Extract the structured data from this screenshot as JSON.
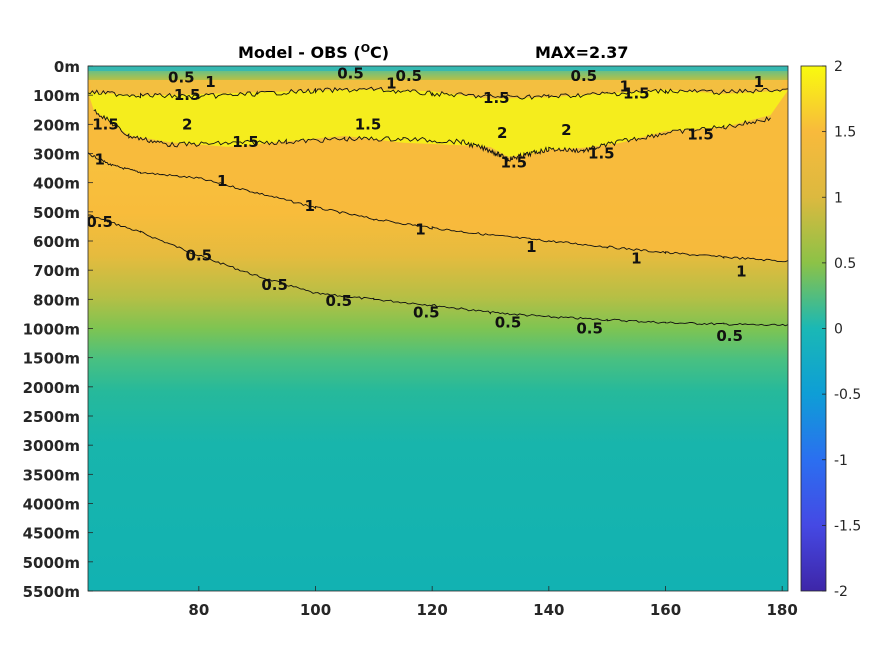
{
  "chart_data": {
    "type": "heatmap",
    "title": "Model - OBS (",
    "title_unit_sup": "O",
    "title_unit_tail": "C)",
    "max_label": "MAX=2.37",
    "xlim": [
      61,
      181
    ],
    "x_ticks": [
      80,
      100,
      120,
      140,
      160,
      180
    ],
    "y_ticks": [
      "0m",
      "100m",
      "200m",
      "300m",
      "400m",
      "500m",
      "600m",
      "700m",
      "800m",
      "1000m",
      "1500m",
      "2000m",
      "2500m",
      "3000m",
      "3500m",
      "4000m",
      "4500m",
      "5000m",
      "5500m"
    ],
    "colorbar": {
      "range": [
        -2,
        2
      ],
      "ticks": [
        2,
        1.5,
        1,
        0.5,
        0,
        -0.5,
        -1,
        -1.5,
        -2
      ],
      "tick_labels": [
        "2",
        "1.5",
        "1",
        "0.5",
        "0",
        "-0.5",
        "-1",
        "-1.5",
        "-2"
      ],
      "colormap": "parula"
    },
    "contours": [
      {
        "level": 0.5,
        "label": "0.5",
        "points": [
          [
            61,
            5.1
          ],
          [
            70,
            5.7
          ],
          [
            80,
            6.5
          ],
          [
            90,
            7.2
          ],
          [
            100,
            7.8
          ],
          [
            110,
            8.0
          ],
          [
            120,
            8.2
          ],
          [
            130,
            8.45
          ],
          [
            140,
            8.6
          ],
          [
            150,
            8.7
          ],
          [
            160,
            8.8
          ],
          [
            170,
            8.85
          ],
          [
            181,
            8.9
          ]
        ]
      },
      {
        "level": 1.0,
        "label": "1",
        "points": [
          [
            61,
            3.0
          ],
          [
            65,
            3.4
          ],
          [
            70,
            3.65
          ],
          [
            80,
            3.85
          ],
          [
            90,
            4.35
          ],
          [
            100,
            4.85
          ],
          [
            110,
            5.25
          ],
          [
            120,
            5.55
          ],
          [
            130,
            5.8
          ],
          [
            140,
            6.0
          ],
          [
            150,
            6.2
          ],
          [
            160,
            6.4
          ],
          [
            170,
            6.55
          ],
          [
            181,
            6.7
          ]
        ]
      },
      {
        "level": 1.5,
        "label": "1.5",
        "points": [
          [
            62,
            1.5
          ],
          [
            68,
            2.4
          ],
          [
            75,
            2.7
          ],
          [
            85,
            2.65
          ],
          [
            95,
            2.6
          ],
          [
            105,
            2.5
          ],
          [
            115,
            2.5
          ],
          [
            125,
            2.6
          ],
          [
            130,
            2.9
          ],
          [
            133,
            3.2
          ],
          [
            136,
            3.05
          ],
          [
            140,
            2.85
          ],
          [
            146,
            2.9
          ],
          [
            152,
            2.6
          ],
          [
            160,
            2.3
          ],
          [
            170,
            2.1
          ],
          [
            178,
            1.8
          ]
        ]
      },
      {
        "level": 1.5,
        "label": "1.5",
        "points": [
          [
            61,
            0.9
          ],
          [
            70,
            1.0
          ],
          [
            80,
            1.05
          ],
          [
            90,
            0.95
          ],
          [
            100,
            0.85
          ],
          [
            110,
            0.8
          ],
          [
            120,
            0.95
          ],
          [
            130,
            1.05
          ],
          [
            140,
            1.05
          ],
          [
            150,
            0.95
          ],
          [
            160,
            0.85
          ],
          [
            170,
            0.9
          ],
          [
            181,
            0.8
          ]
        ]
      }
    ],
    "contour_labels": [
      {
        "text": "0.5",
        "x": 63,
        "y": 5.35
      },
      {
        "text": "0.5",
        "x": 80,
        "y": 6.5
      },
      {
        "text": "0.5",
        "x": 93,
        "y": 7.5
      },
      {
        "text": "0.5",
        "x": 104,
        "y": 8.05
      },
      {
        "text": "0.5",
        "x": 119,
        "y": 8.45
      },
      {
        "text": "0.5",
        "x": 133,
        "y": 8.8
      },
      {
        "text": "0.5",
        "x": 147,
        "y": 9.0
      },
      {
        "text": "0.5",
        "x": 171,
        "y": 9.25
      },
      {
        "text": "1",
        "x": 63,
        "y": 3.2
      },
      {
        "text": "1",
        "x": 84,
        "y": 3.95
      },
      {
        "text": "1",
        "x": 99,
        "y": 4.8
      },
      {
        "text": "1",
        "x": 118,
        "y": 5.6
      },
      {
        "text": "1",
        "x": 137,
        "y": 6.2
      },
      {
        "text": "1",
        "x": 155,
        "y": 6.6
      },
      {
        "text": "1",
        "x": 173,
        "y": 7.05
      },
      {
        "text": "1.5",
        "x": 78,
        "y": 1.0
      },
      {
        "text": "1.5",
        "x": 88,
        "y": 2.6
      },
      {
        "text": "1.5",
        "x": 131,
        "y": 1.1
      },
      {
        "text": "1.5",
        "x": 134,
        "y": 3.3
      },
      {
        "text": "1.5",
        "x": 149,
        "y": 3.0
      },
      {
        "text": "1.5",
        "x": 155,
        "y": 0.95
      },
      {
        "text": "1.5",
        "x": 166,
        "y": 2.35
      },
      {
        "text": "1.5",
        "x": 109,
        "y": 2.0
      },
      {
        "text": "1.5",
        "x": 64,
        "y": 2.0
      },
      {
        "text": "0.5",
        "x": 77,
        "y": 0.4
      },
      {
        "text": "0.5",
        "x": 106,
        "y": 0.25
      },
      {
        "text": "0.5",
        "x": 116,
        "y": 0.35
      },
      {
        "text": "0.5",
        "x": 146,
        "y": 0.35
      },
      {
        "text": "2",
        "x": 78,
        "y": 2.0
      },
      {
        "text": "2",
        "x": 132,
        "y": 2.3
      },
      {
        "text": "2",
        "x": 143,
        "y": 2.2
      },
      {
        "text": "1",
        "x": 82,
        "y": 0.55
      },
      {
        "text": "1",
        "x": 113,
        "y": 0.6
      },
      {
        "text": "1",
        "x": 153,
        "y": 0.7
      },
      {
        "text": "1",
        "x": 176,
        "y": 0.55
      }
    ]
  }
}
